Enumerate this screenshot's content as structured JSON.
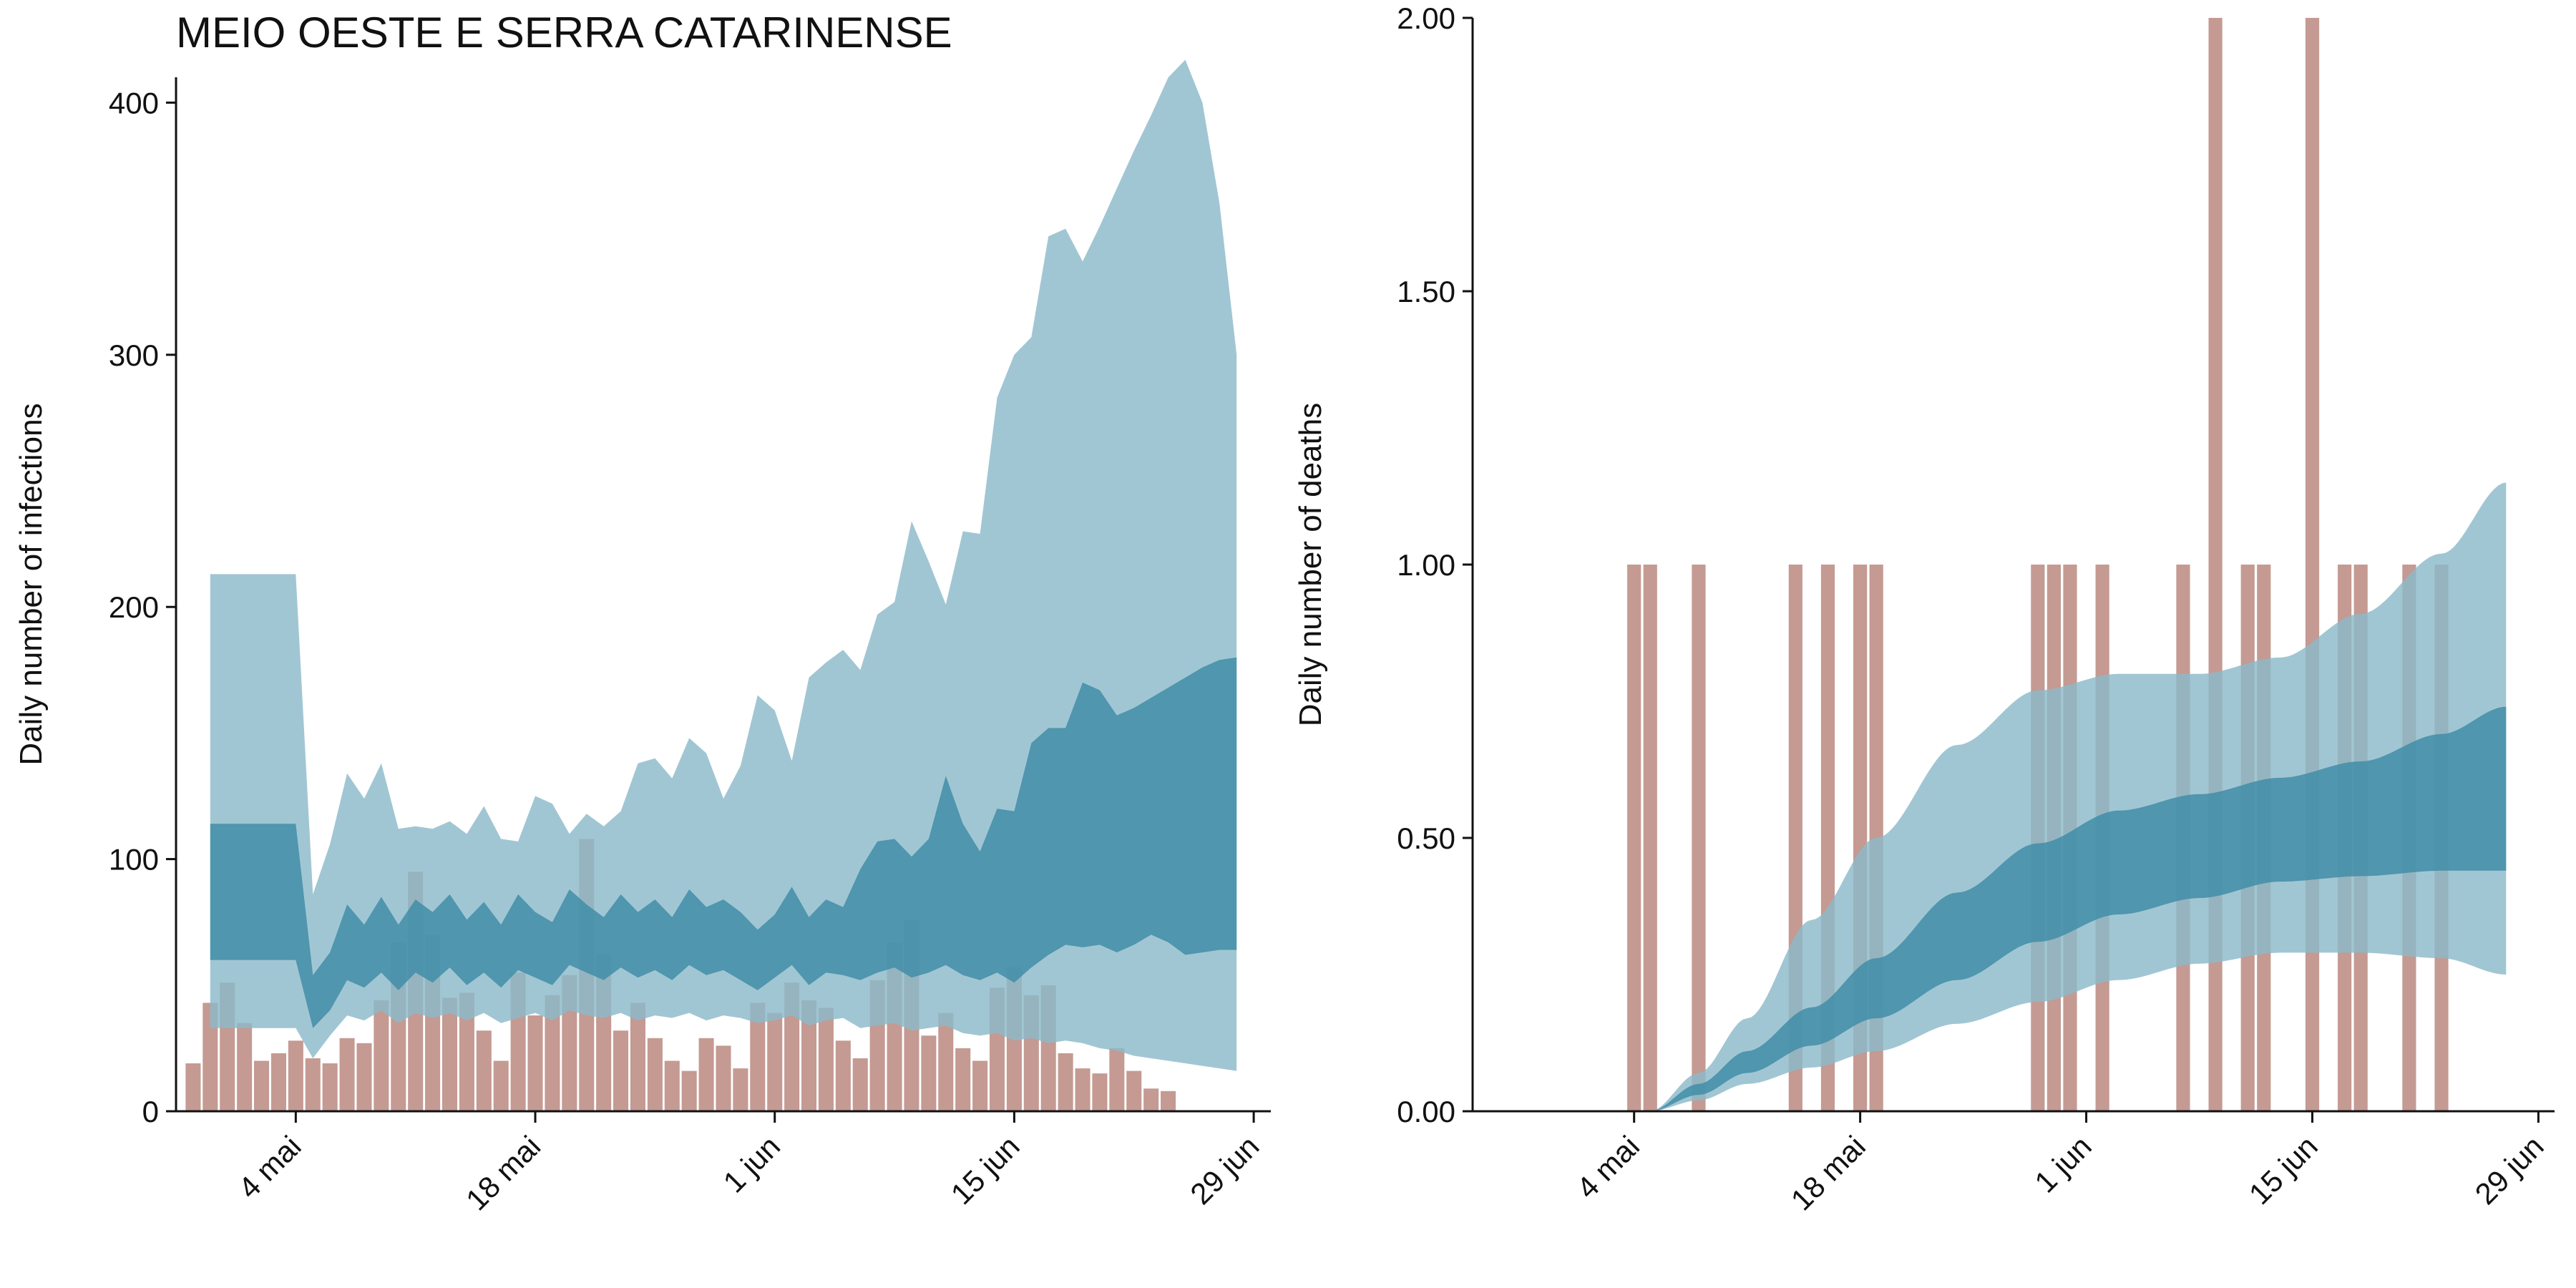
{
  "colors": {
    "bar_observed": "#c49a92",
    "bar_overlap": "#5b7a7e",
    "band_outer": "#8cbac9",
    "band_inner": "#3d8ba6"
  },
  "chart_data": [
    {
      "type": "area",
      "title": "MEIO OESTE E SERRA CATARINENSE",
      "xlabel": "",
      "ylabel": "Daily number of infections",
      "x_ticks": [
        "4 mai",
        "18 mai",
        "1 jun",
        "15 jun",
        "29 jun"
      ],
      "y_ticks": [
        "0",
        "100",
        "200",
        "300",
        "400"
      ],
      "xlim": [
        "2020-04-27",
        "2020-06-30"
      ],
      "ylim": [
        0,
        418
      ],
      "grid": false,
      "observed_start": "2020-04-28",
      "observed": [
        19,
        43,
        51,
        35,
        20,
        23,
        28,
        21,
        19,
        29,
        27,
        44,
        67,
        95,
        70,
        45,
        47,
        32,
        20,
        55,
        38,
        46,
        54,
        108,
        62,
        32,
        43,
        29,
        20,
        16,
        29,
        26,
        17,
        43,
        39,
        51,
        44,
        41,
        28,
        21,
        52,
        67,
        76,
        30,
        39,
        25,
        20,
        49,
        57,
        46,
        50,
        23,
        17,
        15,
        25,
        16,
        9,
        8
      ],
      "model_start": "2020-04-29",
      "model_p2_5": [
        33,
        33,
        33,
        33,
        33,
        33,
        21,
        30,
        38,
        36,
        40,
        35,
        39,
        37,
        39,
        36,
        39,
        35,
        37,
        39,
        36,
        40,
        38,
        37,
        39,
        36,
        38,
        37,
        39,
        36,
        38,
        37,
        35,
        36,
        38,
        34,
        36,
        37,
        33,
        34,
        35,
        32,
        33,
        34,
        31,
        30,
        31,
        28,
        29,
        27,
        28,
        27,
        25,
        24,
        22,
        21,
        20,
        19,
        18,
        17,
        16
      ],
      "model_p25": [
        60,
        60,
        60,
        60,
        60,
        60,
        33,
        40,
        52,
        49,
        55,
        48,
        55,
        51,
        57,
        50,
        55,
        49,
        56,
        53,
        50,
        58,
        55,
        52,
        57,
        53,
        56,
        52,
        58,
        54,
        56,
        52,
        48,
        53,
        58,
        50,
        55,
        54,
        52,
        55,
        57,
        53,
        55,
        58,
        54,
        52,
        55,
        51,
        57,
        62,
        66,
        65,
        66,
        63,
        66,
        70,
        67,
        62,
        63,
        64,
        64
      ],
      "model_p75": [
        114,
        114,
        114,
        114,
        114,
        114,
        54,
        63,
        82,
        74,
        85,
        74,
        84,
        79,
        86,
        76,
        83,
        74,
        86,
        79,
        75,
        88,
        82,
        77,
        86,
        79,
        84,
        77,
        88,
        81,
        84,
        79,
        72,
        78,
        89,
        77,
        84,
        81,
        96,
        107,
        108,
        101,
        108,
        133,
        114,
        103,
        120,
        119,
        146,
        152,
        152,
        170,
        167,
        157,
        160,
        164,
        168,
        172,
        176,
        179,
        180
      ],
      "model_p97_5": [
        213,
        213,
        213,
        213,
        213,
        213,
        86,
        106,
        134,
        124,
        138,
        112,
        113,
        112,
        115,
        110,
        121,
        108,
        107,
        125,
        122,
        110,
        118,
        113,
        119,
        138,
        140,
        132,
        148,
        142,
        124,
        137,
        165,
        159,
        139,
        172,
        178,
        183,
        175,
        197,
        202,
        234,
        218,
        201,
        230,
        229,
        283,
        300,
        307,
        347,
        350,
        337,
        351,
        366,
        381,
        395,
        410,
        417,
        400,
        360,
        300
      ]
    },
    {
      "type": "area",
      "title": "",
      "xlabel": "",
      "ylabel": "Daily number of deaths",
      "x_ticks": [
        "4 mai",
        "18 mai",
        "1 jun",
        "15 jun",
        "29 jun"
      ],
      "y_ticks": [
        "0.00",
        "0.50",
        "1.00",
        "1.50",
        "2.00"
      ],
      "xlim": [
        "2020-04-24",
        "2020-06-30"
      ],
      "ylim": [
        0,
        2
      ],
      "grid": false,
      "observed_deaths": [
        {
          "date": "2020-05-04",
          "value": 1
        },
        {
          "date": "2020-05-05",
          "value": 1
        },
        {
          "date": "2020-05-08",
          "value": 1
        },
        {
          "date": "2020-05-14",
          "value": 1
        },
        {
          "date": "2020-05-16",
          "value": 1
        },
        {
          "date": "2020-05-18",
          "value": 1
        },
        {
          "date": "2020-05-19",
          "value": 1
        },
        {
          "date": "2020-05-29",
          "value": 1
        },
        {
          "date": "2020-05-30",
          "value": 1
        },
        {
          "date": "2020-05-31",
          "value": 1
        },
        {
          "date": "2020-06-02",
          "value": 1
        },
        {
          "date": "2020-06-07",
          "value": 1
        },
        {
          "date": "2020-06-09",
          "value": 2
        },
        {
          "date": "2020-06-11",
          "value": 1
        },
        {
          "date": "2020-06-12",
          "value": 1
        },
        {
          "date": "2020-06-15",
          "value": 2
        },
        {
          "date": "2020-06-17",
          "value": 1
        },
        {
          "date": "2020-06-18",
          "value": 1
        },
        {
          "date": "2020-06-21",
          "value": 1
        },
        {
          "date": "2020-06-23",
          "value": 1
        }
      ],
      "band_knots": [
        {
          "date": "2020-05-05",
          "p2_5": 0.0,
          "p25": 0.0,
          "p75": 0.0,
          "p97_5": 0.0
        },
        {
          "date": "2020-05-08",
          "p2_5": 0.02,
          "p25": 0.03,
          "p75": 0.05,
          "p97_5": 0.07
        },
        {
          "date": "2020-05-11",
          "p2_5": 0.05,
          "p25": 0.07,
          "p75": 0.11,
          "p97_5": 0.17
        },
        {
          "date": "2020-05-15",
          "p2_5": 0.08,
          "p25": 0.12,
          "p75": 0.19,
          "p97_5": 0.35
        },
        {
          "date": "2020-05-19",
          "p2_5": 0.11,
          "p25": 0.17,
          "p75": 0.28,
          "p97_5": 0.5
        },
        {
          "date": "2020-05-24",
          "p2_5": 0.16,
          "p25": 0.24,
          "p75": 0.4,
          "p97_5": 0.67
        },
        {
          "date": "2020-05-29",
          "p2_5": 0.2,
          "p25": 0.31,
          "p75": 0.49,
          "p97_5": 0.77
        },
        {
          "date": "2020-06-03",
          "p2_5": 0.24,
          "p25": 0.36,
          "p75": 0.55,
          "p97_5": 0.8
        },
        {
          "date": "2020-06-08",
          "p2_5": 0.27,
          "p25": 0.39,
          "p75": 0.58,
          "p97_5": 0.8
        },
        {
          "date": "2020-06-13",
          "p2_5": 0.29,
          "p25": 0.42,
          "p75": 0.61,
          "p97_5": 0.83
        },
        {
          "date": "2020-06-18",
          "p2_5": 0.29,
          "p25": 0.43,
          "p75": 0.64,
          "p97_5": 0.91
        },
        {
          "date": "2020-06-23",
          "p2_5": 0.28,
          "p25": 0.44,
          "p75": 0.69,
          "p97_5": 1.02
        },
        {
          "date": "2020-06-27",
          "p2_5": 0.25,
          "p25": 0.44,
          "p75": 0.74,
          "p97_5": 1.15
        }
      ]
    }
  ]
}
